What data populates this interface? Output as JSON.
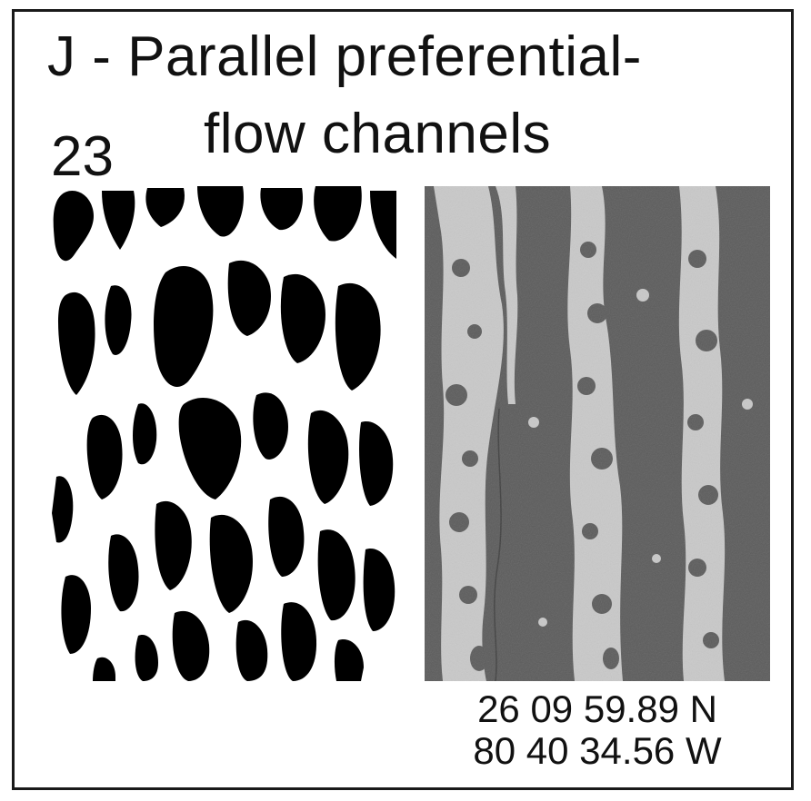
{
  "figure": {
    "title": "J - Parallel preferential-",
    "title_line2": "flow channels",
    "panel_number": "23",
    "coordinates": {
      "latitude": "26 09 59.89 N",
      "longitude": "80 40 34.56 W"
    }
  },
  "colors": {
    "binary_dark": "#000000",
    "binary_light": "#ffffff",
    "photo_dark": "#5b5b5b",
    "photo_light": "#c9c9c9",
    "frame": "#1a1a1a"
  }
}
